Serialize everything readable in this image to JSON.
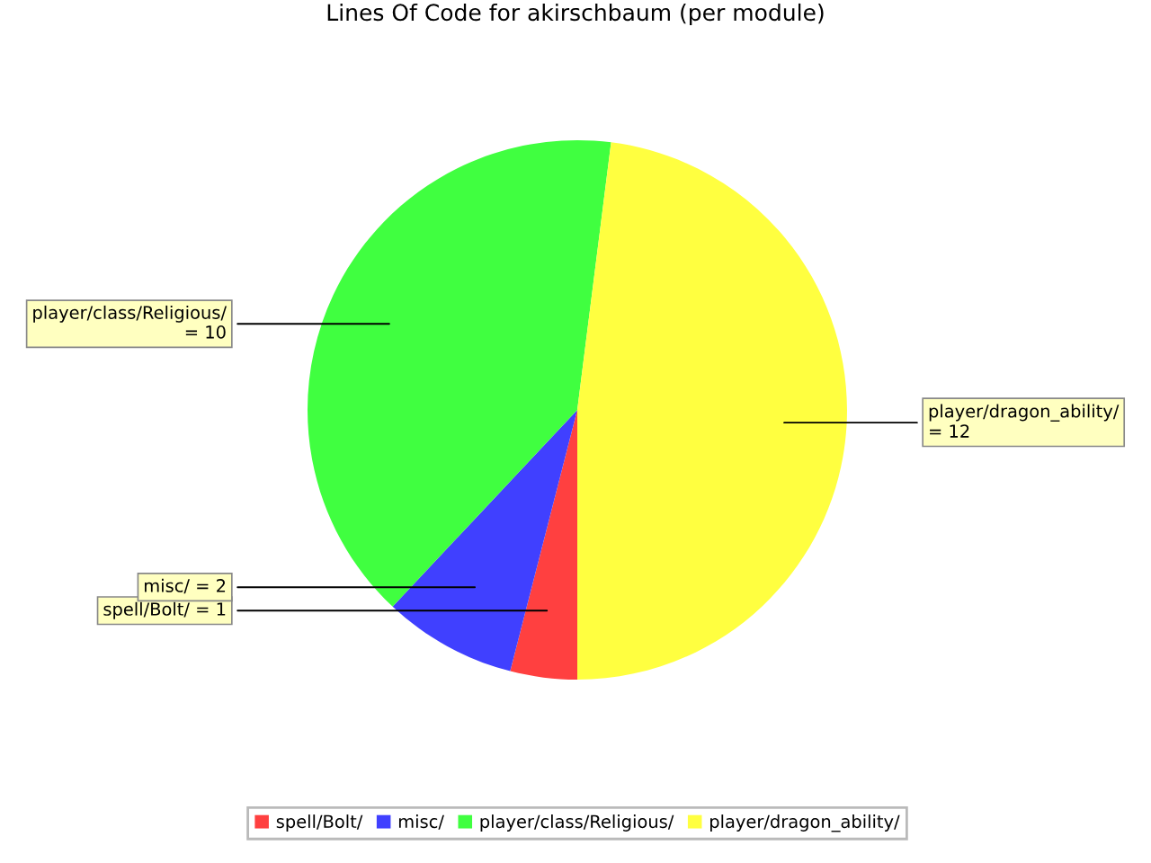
{
  "chart_data": {
    "type": "pie",
    "title": "Lines Of Code for akirschbaum (per module)",
    "categories": [
      "spell/Bolt/",
      "misc/",
      "player/class/Religious/",
      "player/dragon_ability/"
    ],
    "values": [
      1,
      2,
      10,
      12
    ],
    "colors": [
      "#ff4040",
      "#4040ff",
      "#40ff40",
      "#ffff40"
    ],
    "value_labels": [
      "= 1",
      "= 2",
      "= 10",
      "= 12"
    ],
    "legend": "bottom"
  }
}
